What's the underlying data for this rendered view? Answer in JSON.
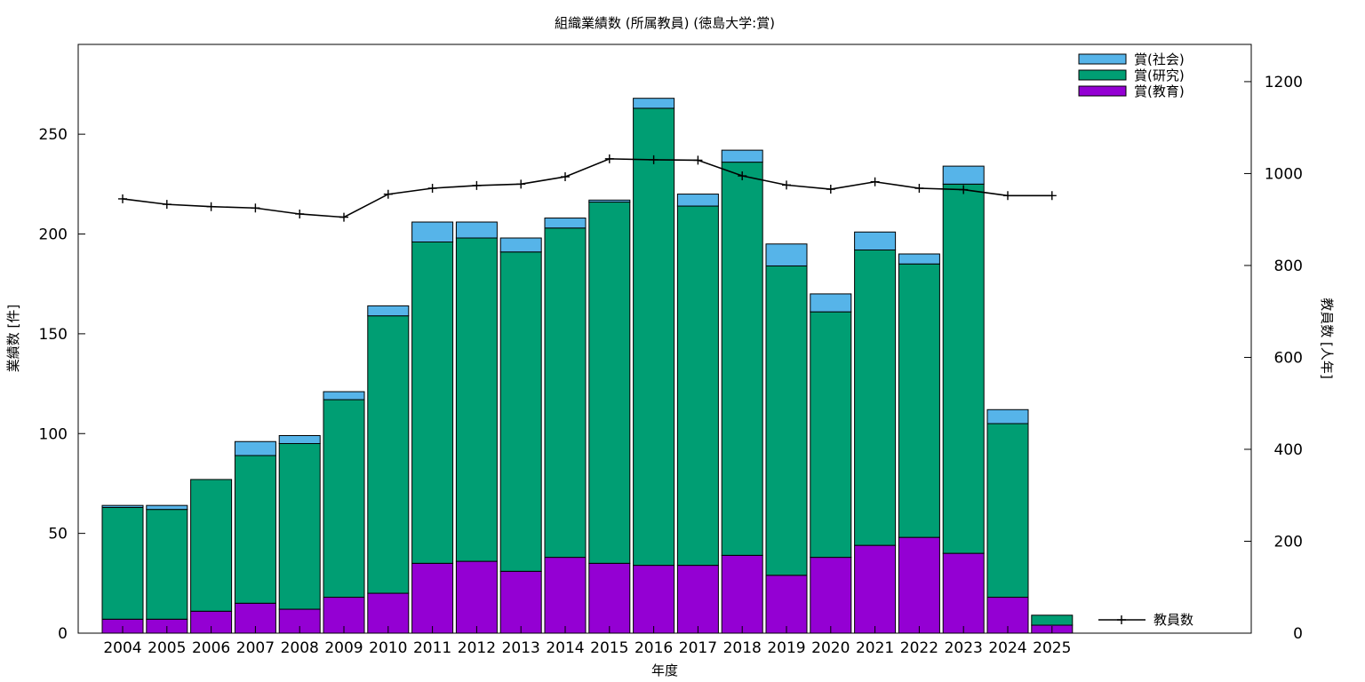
{
  "chart_data": {
    "type": "bar",
    "stacked": true,
    "title": "組織業績数 (所属教員) (徳島大学:賞)",
    "xlabel": "年度",
    "ylabel": "業績数 [件]",
    "y2label": "教員数 [人年]",
    "categories": [
      "2004",
      "2005",
      "2006",
      "2007",
      "2008",
      "2009",
      "2010",
      "2011",
      "2012",
      "2013",
      "2014",
      "2015",
      "2016",
      "2017",
      "2018",
      "2019",
      "2020",
      "2021",
      "2022",
      "2023",
      "2024",
      "2025"
    ],
    "ylim": [
      0,
      295
    ],
    "yticks": [
      0,
      50,
      100,
      150,
      200,
      250
    ],
    "y2lim": [
      0,
      1281
    ],
    "y2ticks": [
      0,
      200,
      400,
      600,
      800,
      1000,
      1200
    ],
    "grid": false,
    "legend_position": "top-right",
    "series": [
      {
        "name": "賞(教育)",
        "color": "#9400d3",
        "values": [
          7,
          7,
          11,
          15,
          12,
          18,
          20,
          35,
          36,
          31,
          38,
          35,
          34,
          34,
          39,
          29,
          38,
          44,
          48,
          40,
          18,
          4
        ]
      },
      {
        "name": "賞(研究)",
        "color": "#009e73",
        "values": [
          56,
          55,
          66,
          74,
          83,
          99,
          139,
          161,
          162,
          160,
          165,
          181,
          229,
          180,
          197,
          155,
          123,
          148,
          137,
          185,
          87,
          5
        ]
      },
      {
        "name": "賞(社会)",
        "color": "#56b4e9",
        "values": [
          1,
          2,
          0,
          7,
          4,
          4,
          5,
          10,
          8,
          7,
          5,
          1,
          5,
          6,
          6,
          11,
          9,
          9,
          5,
          9,
          7,
          0
        ]
      }
    ],
    "line_series": {
      "name": "教員数",
      "color": "#000000",
      "axis": "right",
      "values": [
        945,
        933,
        928,
        925,
        912,
        905,
        955,
        968,
        974,
        977,
        993,
        1032,
        1030,
        1029,
        995,
        975,
        966,
        982,
        968,
        965,
        952,
        952
      ]
    }
  }
}
